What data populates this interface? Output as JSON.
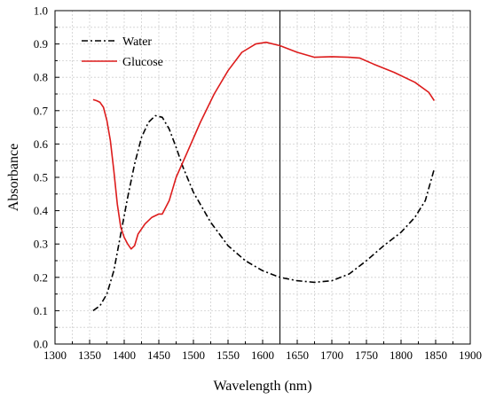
{
  "chart_data": {
    "type": "line",
    "title": "",
    "xlabel": "Wavelength (nm)",
    "ylabel": "Absorbance",
    "xlim": [
      1300,
      1900
    ],
    "ylim": [
      0.0,
      1.0
    ],
    "xticks": [
      1300,
      1350,
      1400,
      1450,
      1500,
      1550,
      1600,
      1650,
      1700,
      1750,
      1800,
      1850,
      1900
    ],
    "yticks": [
      0.0,
      0.1,
      0.2,
      0.3,
      0.4,
      0.5,
      0.6,
      0.7,
      0.8,
      0.9,
      1.0
    ],
    "grid": true,
    "legend_position": "top-left",
    "vertical_line_x": 1625,
    "series": [
      {
        "name": "Water",
        "color": "#000000",
        "style": "dash-dot",
        "x": [
          1355,
          1365,
          1375,
          1385,
          1395,
          1405,
          1415,
          1425,
          1435,
          1445,
          1455,
          1465,
          1475,
          1485,
          1500,
          1525,
          1550,
          1575,
          1600,
          1625,
          1650,
          1675,
          1700,
          1725,
          1750,
          1775,
          1800,
          1820,
          1835,
          1848
        ],
        "y": [
          0.1,
          0.115,
          0.15,
          0.22,
          0.33,
          0.44,
          0.54,
          0.62,
          0.665,
          0.685,
          0.68,
          0.645,
          0.59,
          0.53,
          0.455,
          0.365,
          0.295,
          0.25,
          0.22,
          0.2,
          0.19,
          0.185,
          0.19,
          0.21,
          0.25,
          0.295,
          0.335,
          0.38,
          0.43,
          0.525
        ]
      },
      {
        "name": "Glucose",
        "color": "#dd1c1c",
        "style": "solid",
        "x": [
          1355,
          1360,
          1365,
          1370,
          1375,
          1380,
          1385,
          1390,
          1395,
          1400,
          1405,
          1410,
          1415,
          1420,
          1430,
          1440,
          1450,
          1455,
          1465,
          1475,
          1490,
          1510,
          1530,
          1550,
          1570,
          1590,
          1605,
          1625,
          1650,
          1675,
          1700,
          1725,
          1740,
          1760,
          1790,
          1820,
          1840,
          1848
        ],
        "y": [
          0.733,
          0.73,
          0.725,
          0.71,
          0.67,
          0.61,
          0.52,
          0.42,
          0.35,
          0.32,
          0.3,
          0.285,
          0.295,
          0.33,
          0.36,
          0.38,
          0.39,
          0.39,
          0.43,
          0.5,
          0.57,
          0.665,
          0.75,
          0.82,
          0.875,
          0.9,
          0.905,
          0.895,
          0.875,
          0.86,
          0.862,
          0.86,
          0.858,
          0.84,
          0.815,
          0.785,
          0.755,
          0.73
        ]
      }
    ]
  }
}
